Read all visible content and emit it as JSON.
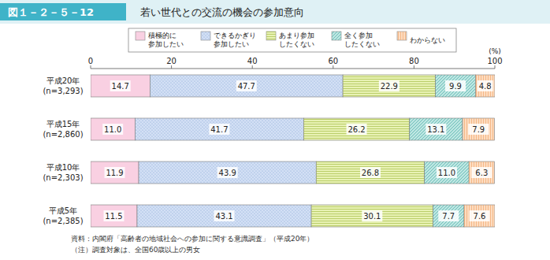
{
  "chart_data": {
    "type": "bar",
    "orientation": "horizontal",
    "stacked": true,
    "data_labels": true,
    "grid": false,
    "legend": "top",
    "figure_number": "図１－２－５－12",
    "title": "若い世代との交流の機会の参加意向",
    "xlabel": "(%)",
    "xlim": [
      0,
      100
    ],
    "xticks": [
      0,
      20,
      40,
      60,
      80,
      100
    ],
    "categories": [
      "平成20年\n(n=3,293)",
      "平成15年\n(n=2,860)",
      "平成10年\n(n=2,303)",
      "平成5年\n(n=2,385)"
    ],
    "series": [
      {
        "name": "積極的に\n参加したい",
        "color": "#f9d0e2",
        "values": [
          14.7,
          11.0,
          11.9,
          11.5
        ],
        "value_labels": [
          "14.7",
          "11.0",
          "11.9",
          "11.5"
        ]
      },
      {
        "name": "できるかぎり\n参加したい",
        "color": "#d3e0f5",
        "values": [
          47.7,
          41.7,
          43.9,
          43.1
        ],
        "value_labels": [
          "47.7",
          "41.7",
          "43.9",
          "43.1"
        ]
      },
      {
        "name": "あまり参加\nしたくない",
        "color": "#e8f2b4",
        "values": [
          22.9,
          26.2,
          26.8,
          30.1
        ],
        "value_labels": [
          "22.9",
          "26.2",
          "26.8",
          "30.1"
        ]
      },
      {
        "name": "全く参加\nしたくない",
        "color": "#bde6e2",
        "values": [
          9.9,
          13.1,
          11.0,
          7.7
        ],
        "value_labels": [
          "9.9",
          "13.1",
          "11.0",
          "7.7"
        ]
      },
      {
        "name": "わからない",
        "color": "#fddcc0",
        "values": [
          4.8,
          7.9,
          6.3,
          7.6
        ],
        "value_labels": [
          "4.8",
          "7.9",
          "6.3",
          "7.6"
        ]
      }
    ],
    "source": "資料：内閣府「高齢者の地域社会への参加に関する意識調査」（平成20年）",
    "note": "（注）調査対象は、全国60歳以上の男女"
  }
}
